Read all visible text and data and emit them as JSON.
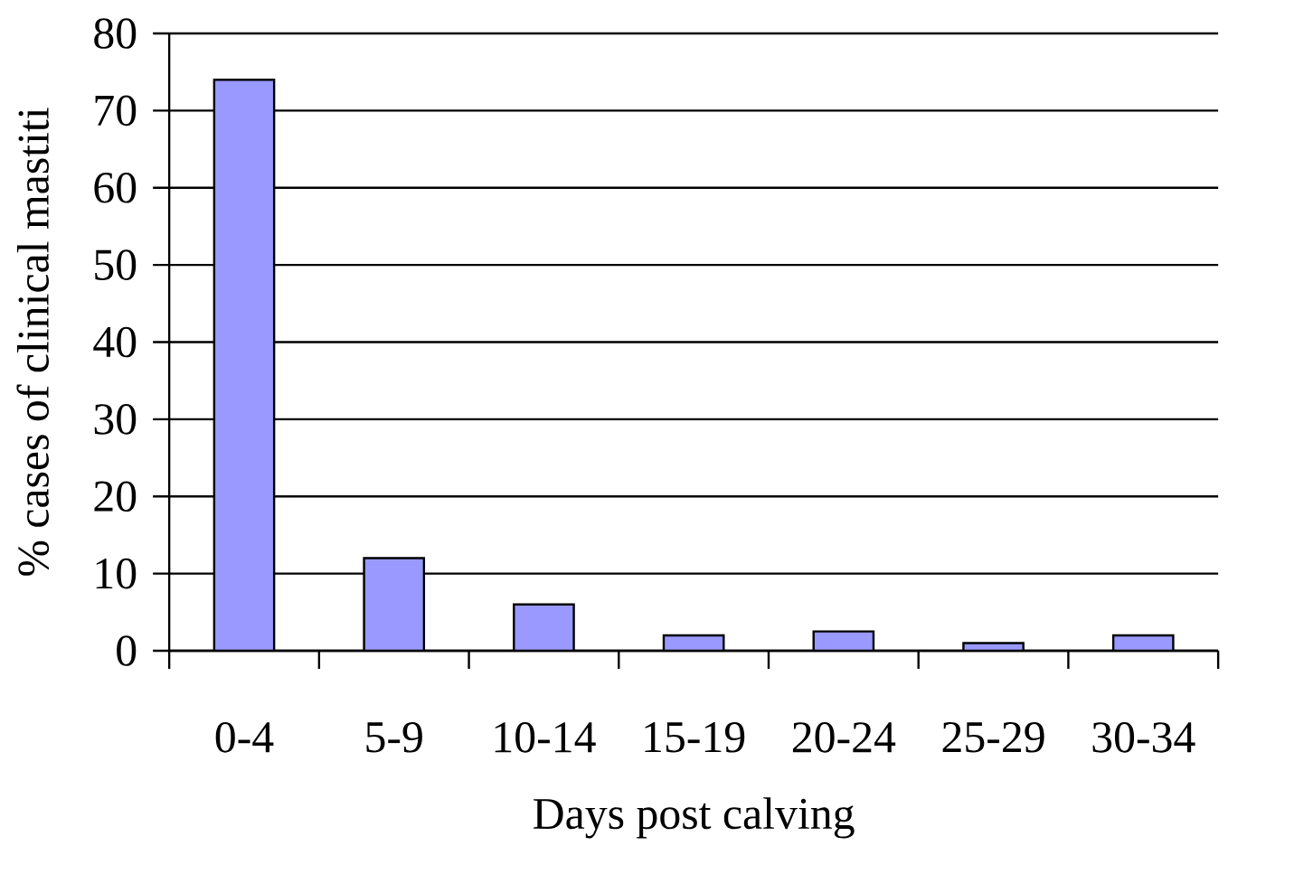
{
  "chart_data": {
    "type": "bar",
    "xlabel": "Days post calving",
    "ylabel": "% cases of clinical mastiti",
    "categories": [
      "0-4",
      "5-9",
      "10-14",
      "15-19",
      "20-24",
      "25-29",
      "30-34"
    ],
    "values": [
      74,
      12,
      6,
      2,
      2.5,
      1,
      2
    ],
    "color": "#9999ff",
    "ylim": [
      0,
      80
    ],
    "yticks": [
      0,
      10,
      20,
      30,
      40,
      50,
      60,
      70,
      80
    ],
    "grid": "y"
  }
}
